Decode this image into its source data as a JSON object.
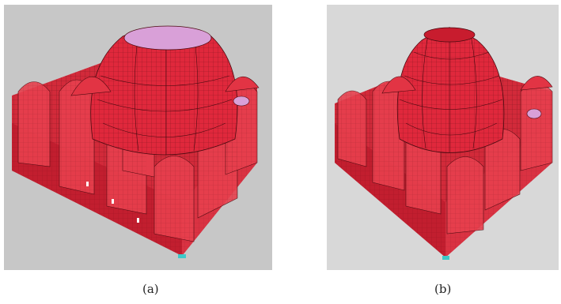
{
  "figure": {
    "panels": [
      {
        "id": "a",
        "caption": "(a)",
        "background": "#c7c7c7",
        "dome_cap": "open"
      },
      {
        "id": "b",
        "caption": "(b)",
        "background": "#d8d8d8",
        "dome_cap": "closed"
      }
    ]
  },
  "colors": {
    "mesh_fill": "#e0283c",
    "mesh_dark": "#a8101e",
    "mesh_line": "#4a0a10",
    "highlight": "#d9a0d8",
    "support": "#3ec8c8"
  }
}
